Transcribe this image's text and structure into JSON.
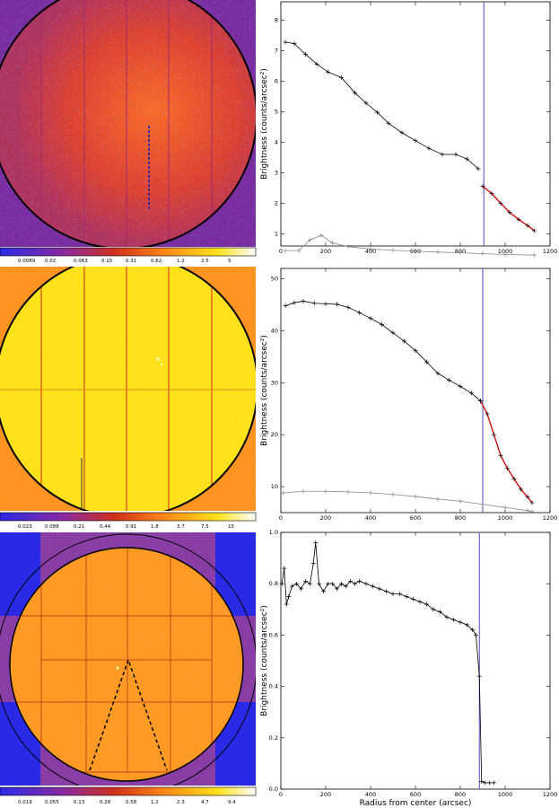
{
  "chart_data": [
    {
      "type": "line",
      "panel": "top",
      "title": "",
      "xlabel": "",
      "ylabel": "Brightness (counts/arcsec²)",
      "xlim": [
        0,
        1200
      ],
      "ylim": [
        0.6,
        8.6
      ],
      "xticks": [
        0,
        200,
        400,
        600,
        800,
        1000,
        1200
      ],
      "yticks": [
        1,
        2,
        3,
        4,
        5,
        6,
        7,
        8
      ],
      "vline_x": 905,
      "series": [
        {
          "name": "profile",
          "color": "#000000",
          "x": [
            20,
            60,
            110,
            160,
            210,
            270,
            330,
            380,
            430,
            480,
            540,
            600,
            660,
            720,
            780,
            830,
            880
          ],
          "y": [
            7.28,
            7.23,
            6.88,
            6.56,
            6.3,
            6.12,
            5.62,
            5.28,
            4.98,
            4.62,
            4.31,
            4.05,
            3.8,
            3.6,
            3.6,
            3.45,
            3.13
          ]
        },
        {
          "name": "fit",
          "color": "#cc0000",
          "x": [
            900,
            940,
            980,
            1020,
            1060,
            1100,
            1130
          ],
          "y": [
            2.56,
            2.32,
            2.0,
            1.7,
            1.47,
            1.27,
            1.1
          ]
        },
        {
          "name": "background",
          "color": "#888888",
          "x": [
            20,
            80,
            130,
            180,
            230,
            300,
            400,
            500,
            600,
            700,
            800,
            900,
            1000,
            1130
          ],
          "y": [
            0.45,
            0.45,
            0.8,
            0.95,
            0.7,
            0.58,
            0.5,
            0.46,
            0.43,
            0.4,
            0.38,
            0.35,
            0.32,
            0.3
          ]
        }
      ]
    },
    {
      "type": "line",
      "panel": "middle",
      "title": "",
      "xlabel": "",
      "ylabel": "Brightness (counts/arcsec²)",
      "xlim": [
        0,
        1200
      ],
      "ylim": [
        5,
        52
      ],
      "xticks": [
        0,
        200,
        400,
        600,
        800,
        1000,
        1200
      ],
      "yticks": [
        10,
        20,
        30,
        40,
        50
      ],
      "vline_x": 900,
      "series": [
        {
          "name": "profile",
          "color": "#000000",
          "x": [
            20,
            60,
            100,
            150,
            200,
            250,
            300,
            350,
            400,
            450,
            500,
            550,
            600,
            650,
            700,
            750,
            800,
            850,
            890
          ],
          "y": [
            44.8,
            45.4,
            45.7,
            45.3,
            45.2,
            45.1,
            44.5,
            43.5,
            42.4,
            41.2,
            39.6,
            38.0,
            36.2,
            34.0,
            31.8,
            30.5,
            29.3,
            28.0,
            26.5
          ]
        },
        {
          "name": "fit",
          "color": "#cc0000",
          "x": [
            890,
            920,
            950,
            980,
            1010,
            1040,
            1070,
            1100,
            1120
          ],
          "y": [
            26.5,
            24.0,
            20.0,
            16.0,
            13.5,
            11.5,
            9.5,
            8.0,
            6.9
          ]
        },
        {
          "name": "background",
          "color": "#888888",
          "x": [
            10,
            100,
            200,
            300,
            400,
            500,
            600,
            700,
            800,
            900,
            1000,
            1100,
            1120
          ],
          "y": [
            8.8,
            9.1,
            9.1,
            9.0,
            8.8,
            8.5,
            8.1,
            7.6,
            7.2,
            6.6,
            6.0,
            5.4,
            5.2
          ]
        }
      ]
    },
    {
      "type": "line",
      "panel": "bottom",
      "title": "",
      "xlabel": "Radius from center (arcsec)",
      "ylabel": "Brightness (counts/arcsec²)",
      "xlim": [
        0,
        1200
      ],
      "ylim": [
        0,
        1.0
      ],
      "xticks": [
        0,
        200,
        400,
        600,
        800,
        1000,
        1200
      ],
      "yticks": [
        0.0,
        0.2,
        0.4,
        0.6,
        0.8,
        1.0
      ],
      "vline_x": 885,
      "series": [
        {
          "name": "profile",
          "color": "#000000",
          "x": [
            5,
            15,
            25,
            35,
            50,
            70,
            90,
            110,
            130,
            145,
            155,
            170,
            190,
            210,
            230,
            250,
            270,
            290,
            310,
            330,
            350,
            380,
            410,
            440,
            470,
            500,
            530,
            560,
            590,
            620,
            650,
            680,
            710,
            740,
            770,
            800,
            830,
            855,
            870,
            885,
            895,
            910,
            930,
            950
          ],
          "y": [
            0.8,
            0.86,
            0.72,
            0.75,
            0.79,
            0.8,
            0.78,
            0.81,
            0.8,
            0.88,
            0.96,
            0.8,
            0.77,
            0.8,
            0.8,
            0.78,
            0.8,
            0.79,
            0.81,
            0.8,
            0.81,
            0.8,
            0.79,
            0.78,
            0.77,
            0.76,
            0.76,
            0.75,
            0.74,
            0.73,
            0.72,
            0.7,
            0.69,
            0.67,
            0.66,
            0.65,
            0.64,
            0.62,
            0.6,
            0.44,
            0.03,
            0.025,
            0.025,
            0.025
          ]
        }
      ]
    }
  ],
  "colorbars": [
    {
      "labels": [
        "0.0089",
        "0.02",
        "0.063",
        "0.15",
        "0.31",
        "0.62",
        "1.2",
        "2.5",
        "5"
      ]
    },
    {
      "labels": [
        "0.023",
        "0.088",
        "0.21",
        "0.44",
        "0.91",
        "1.8",
        "3.7",
        "7.5",
        "15"
      ]
    },
    {
      "labels": [
        "0.019",
        "0.055",
        "0.13",
        "0.28",
        "0.58",
        "1.2",
        "2.3",
        "4.7",
        "9.4"
      ]
    }
  ],
  "colors": {
    "blue": "#2a2ae6",
    "red": "#cc1f1a",
    "orange": "#ff8a18",
    "yellow": "#ffe21a",
    "vline": "#4a4ac8",
    "fit": "#cc0000",
    "profile": "#000000",
    "background_profile": "#888888"
  }
}
